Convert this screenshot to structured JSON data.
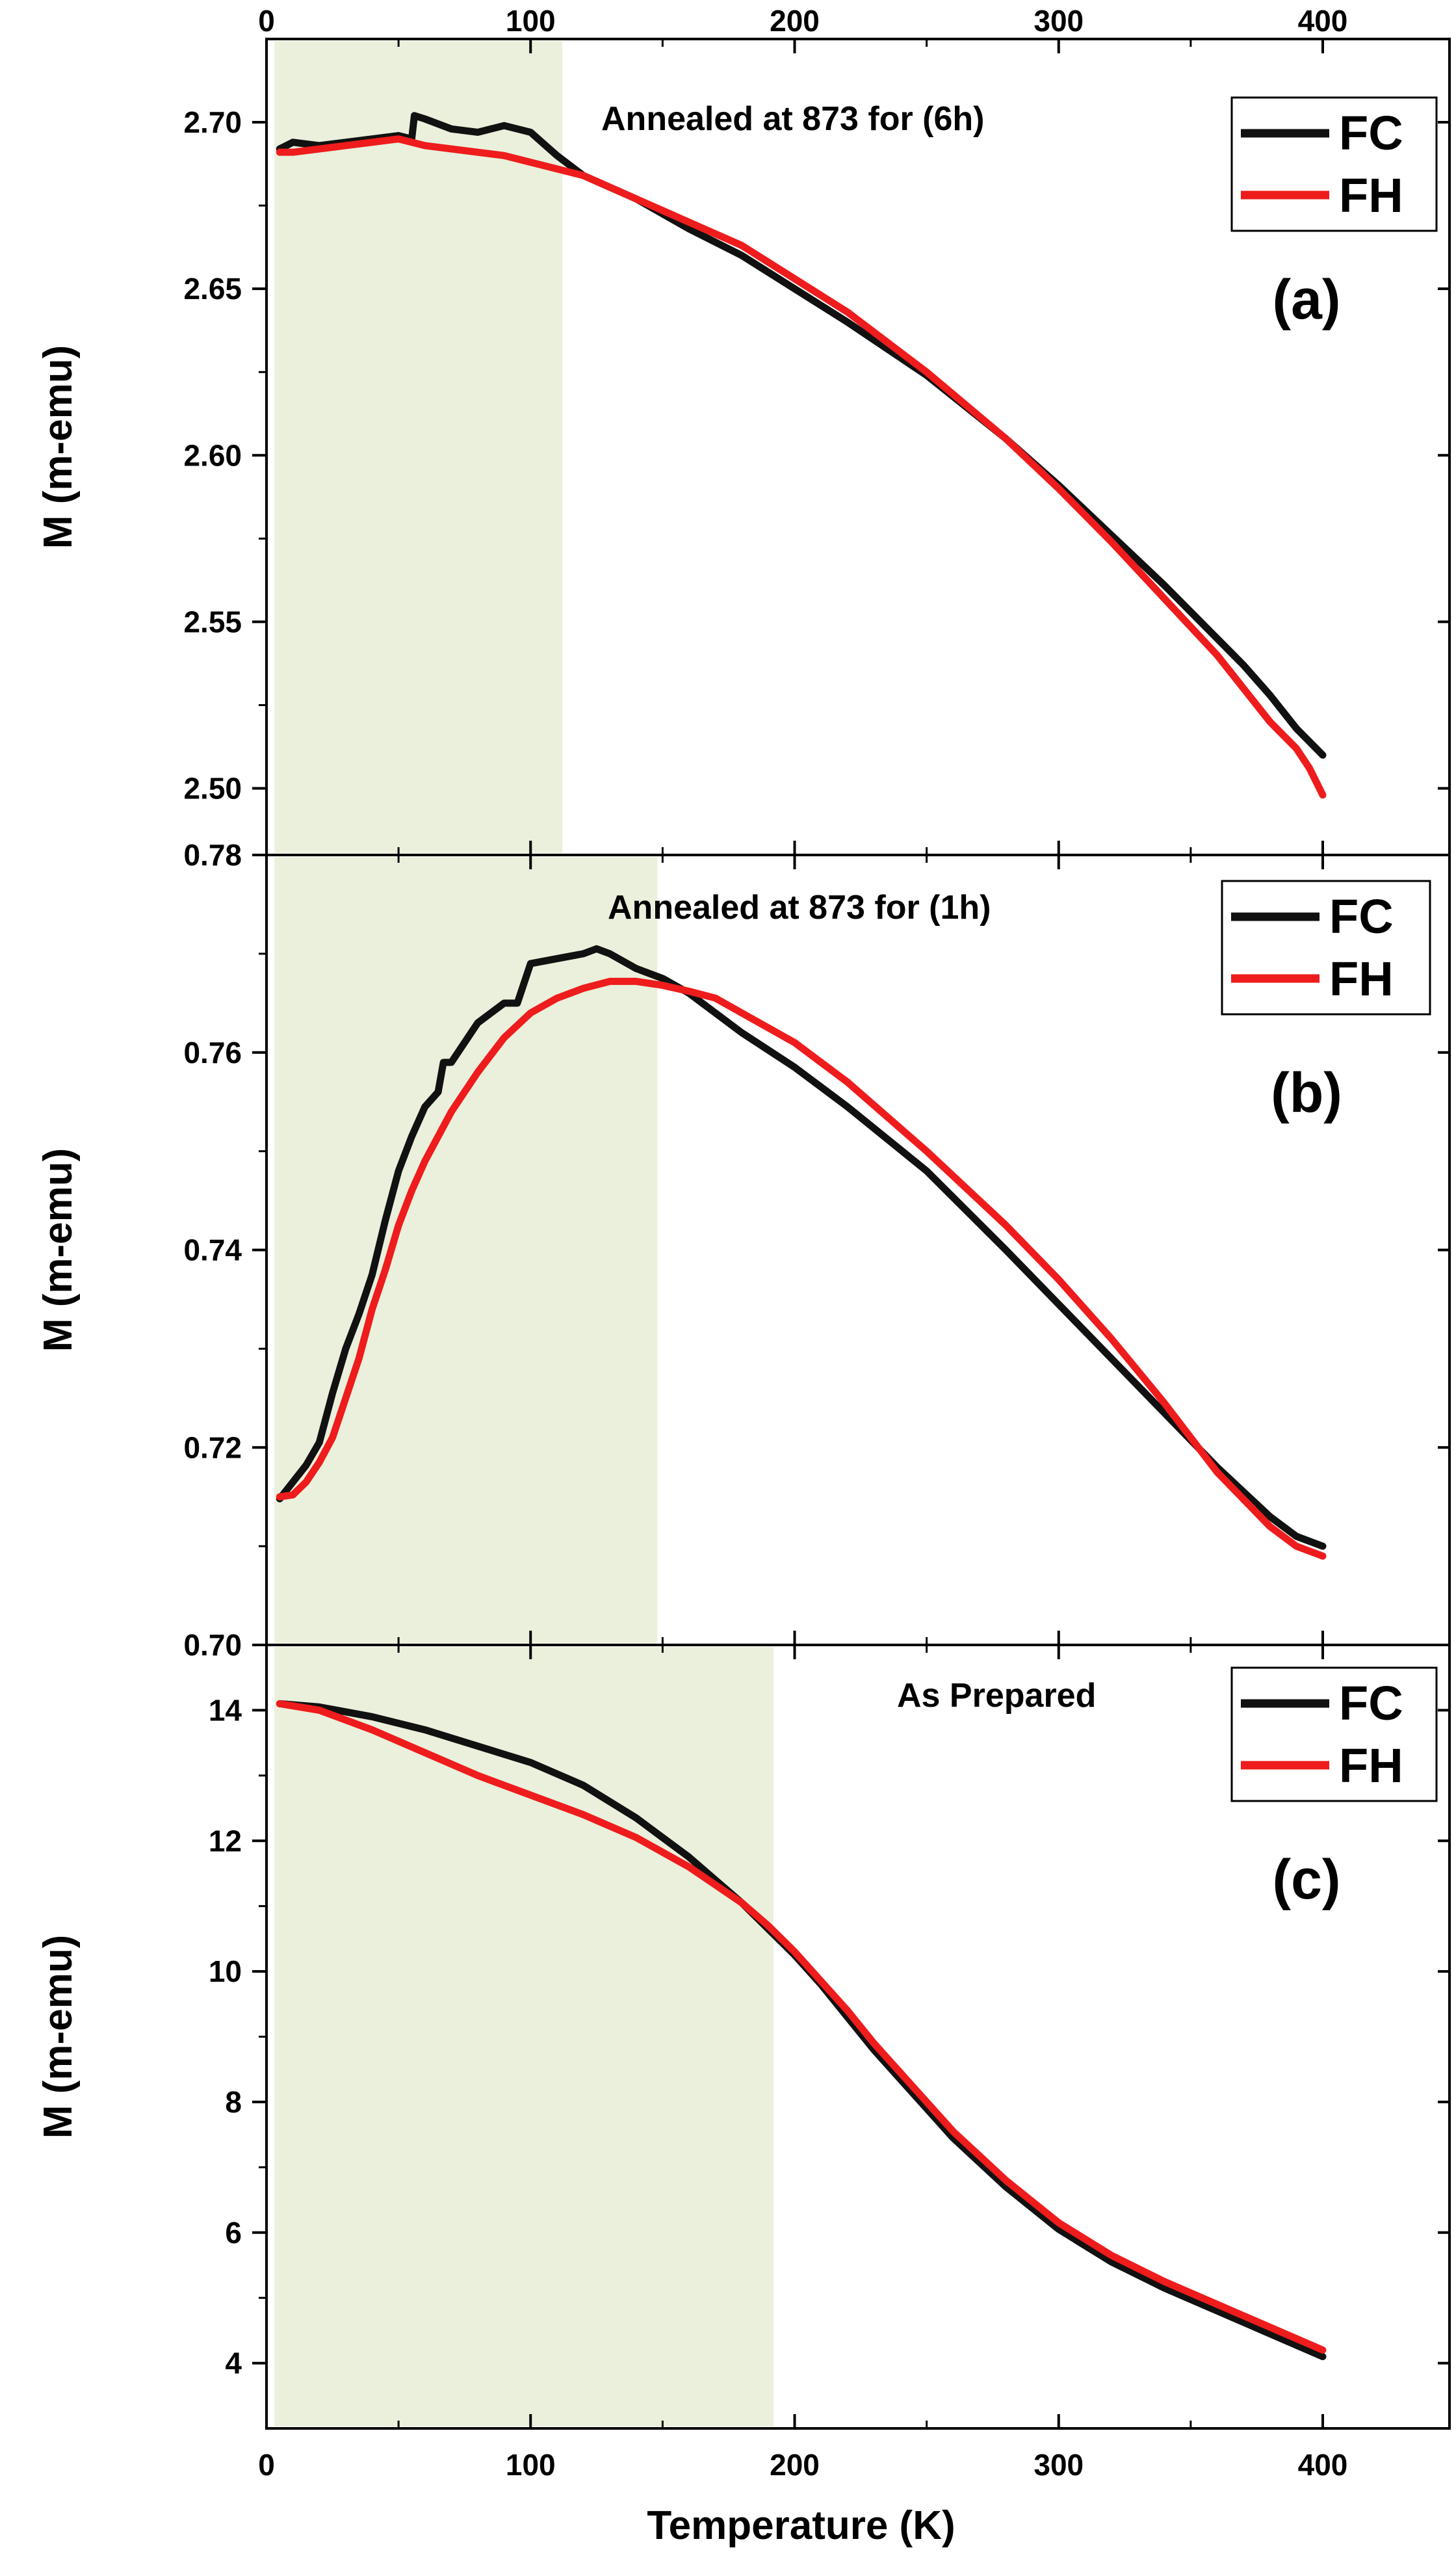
{
  "figure": {
    "shared_xlabel": "Temperature (K)",
    "x_ticks": [
      "0",
      "100",
      "200",
      "300",
      "400"
    ]
  },
  "colors": {
    "fc": "#111111",
    "fh": "#ee1c1c",
    "shade": "#eaf0dc",
    "axis": "#000000"
  },
  "chart_data": [
    {
      "type": "line",
      "panel": "(a)",
      "annotation": "Annealed at 873 for (6h)",
      "xlabel": "",
      "ylabel": "M (m-emu)",
      "xlim": [
        0,
        450
      ],
      "ylim": [
        2.48,
        2.725
      ],
      "yticks": [
        2.5,
        2.55,
        2.6,
        2.65,
        2.7
      ],
      "ytick_labels": [
        "2.50",
        "2.55",
        "2.60",
        "2.65",
        "2.70"
      ],
      "top_axis_ticks": [
        "0",
        "100",
        "200",
        "300",
        "400"
      ],
      "shaded_region": [
        3,
        112
      ],
      "legend": [
        "FC",
        "FH"
      ],
      "series": [
        {
          "name": "FC",
          "x": [
            5,
            10,
            20,
            30,
            40,
            50,
            55,
            56,
            60,
            70,
            80,
            85,
            90,
            100,
            110,
            120,
            140,
            160,
            180,
            200,
            220,
            250,
            280,
            300,
            320,
            340,
            360,
            370,
            380,
            390,
            395,
            400
          ],
          "y": [
            2.692,
            2.694,
            2.693,
            2.694,
            2.695,
            2.696,
            2.695,
            2.702,
            2.701,
            2.698,
            2.697,
            2.698,
            2.699,
            2.697,
            2.69,
            2.684,
            2.677,
            2.668,
            2.66,
            2.65,
            2.64,
            2.624,
            2.605,
            2.591,
            2.576,
            2.561,
            2.545,
            2.537,
            2.528,
            2.518,
            2.514,
            2.51
          ]
        },
        {
          "name": "FH",
          "x": [
            5,
            10,
            20,
            30,
            40,
            50,
            60,
            70,
            80,
            90,
            100,
            110,
            120,
            140,
            160,
            180,
            200,
            220,
            250,
            280,
            300,
            320,
            340,
            360,
            370,
            380,
            390,
            395,
            400
          ],
          "y": [
            2.691,
            2.691,
            2.692,
            2.693,
            2.694,
            2.695,
            2.693,
            2.692,
            2.691,
            2.69,
            2.688,
            2.686,
            2.684,
            2.677,
            2.67,
            2.663,
            2.653,
            2.643,
            2.625,
            2.605,
            2.59,
            2.574,
            2.557,
            2.54,
            2.53,
            2.52,
            2.512,
            2.506,
            2.498
          ]
        }
      ]
    },
    {
      "type": "line",
      "panel": "(b)",
      "annotation": "Annealed at 873 for (1h)",
      "xlabel": "",
      "ylabel": "M (m-emu)",
      "xlim": [
        0,
        450
      ],
      "ylim": [
        0.7,
        0.78
      ],
      "yticks": [
        0.7,
        0.72,
        0.74,
        0.76,
        0.78
      ],
      "ytick_labels": [
        "0.70",
        "0.72",
        "0.74",
        "0.76",
        "0.78"
      ],
      "shaded_region": [
        3,
        148
      ],
      "legend": [
        "FC",
        "FH"
      ],
      "series": [
        {
          "name": "FC",
          "x": [
            5,
            10,
            15,
            20,
            25,
            30,
            35,
            40,
            45,
            50,
            55,
            60,
            65,
            67,
            70,
            75,
            80,
            90,
            95,
            100,
            110,
            120,
            125,
            130,
            140,
            150,
            160,
            180,
            200,
            220,
            250,
            280,
            300,
            320,
            340,
            360,
            380,
            390,
            400
          ],
          "y": [
            0.7148,
            0.7165,
            0.7182,
            0.7205,
            0.7255,
            0.73,
            0.7335,
            0.7375,
            0.743,
            0.748,
            0.7515,
            0.7545,
            0.756,
            0.759,
            0.759,
            0.761,
            0.763,
            0.765,
            0.765,
            0.769,
            0.7695,
            0.77,
            0.7705,
            0.77,
            0.7685,
            0.7675,
            0.766,
            0.762,
            0.7585,
            0.7545,
            0.748,
            0.74,
            0.7345,
            0.729,
            0.7235,
            0.718,
            0.713,
            0.711,
            0.71
          ]
        },
        {
          "name": "FH",
          "x": [
            5,
            10,
            15,
            20,
            25,
            30,
            35,
            40,
            45,
            50,
            55,
            60,
            70,
            80,
            90,
            100,
            110,
            120,
            130,
            140,
            150,
            160,
            170,
            180,
            200,
            220,
            250,
            280,
            300,
            320,
            340,
            360,
            380,
            390,
            400
          ],
          "y": [
            0.715,
            0.7152,
            0.7165,
            0.7185,
            0.721,
            0.725,
            0.729,
            0.734,
            0.738,
            0.7425,
            0.746,
            0.749,
            0.754,
            0.758,
            0.7615,
            0.764,
            0.7655,
            0.7665,
            0.7672,
            0.7672,
            0.7668,
            0.7662,
            0.7655,
            0.764,
            0.761,
            0.757,
            0.75,
            0.7425,
            0.737,
            0.731,
            0.7245,
            0.7175,
            0.712,
            0.71,
            0.709
          ]
        }
      ]
    },
    {
      "type": "line",
      "panel": "(c)",
      "annotation": "As Prepared",
      "xlabel": "Temperature (K)",
      "ylabel": "M (m-emu)",
      "xlim": [
        0,
        450
      ],
      "ylim": [
        3,
        15
      ],
      "yticks": [
        4,
        6,
        8,
        10,
        12,
        14
      ],
      "ytick_labels": [
        "4",
        "6",
        "8",
        "10",
        "12",
        "14"
      ],
      "shaded_region": [
        3,
        192
      ],
      "legend": [
        "FC",
        "FH"
      ],
      "series": [
        {
          "name": "FC",
          "x": [
            5,
            20,
            40,
            60,
            80,
            100,
            120,
            140,
            160,
            180,
            190,
            200,
            210,
            220,
            230,
            240,
            250,
            260,
            280,
            300,
            320,
            340,
            360,
            380,
            400
          ],
          "y": [
            14.1,
            14.05,
            13.9,
            13.7,
            13.45,
            13.2,
            12.85,
            12.35,
            11.75,
            11.05,
            10.65,
            10.25,
            9.8,
            9.3,
            8.8,
            8.35,
            7.9,
            7.45,
            6.7,
            6.05,
            5.55,
            5.15,
            4.8,
            4.45,
            4.1
          ]
        },
        {
          "name": "FH",
          "x": [
            5,
            20,
            40,
            60,
            80,
            100,
            120,
            140,
            160,
            180,
            190,
            200,
            210,
            220,
            230,
            240,
            250,
            260,
            280,
            300,
            320,
            340,
            360,
            380,
            400
          ],
          "y": [
            14.1,
            14.0,
            13.7,
            13.35,
            13.0,
            12.7,
            12.4,
            12.05,
            11.6,
            11.05,
            10.7,
            10.3,
            9.85,
            9.4,
            8.9,
            8.45,
            8.0,
            7.55,
            6.8,
            6.15,
            5.65,
            5.25,
            4.9,
            4.55,
            4.2
          ]
        }
      ]
    }
  ]
}
